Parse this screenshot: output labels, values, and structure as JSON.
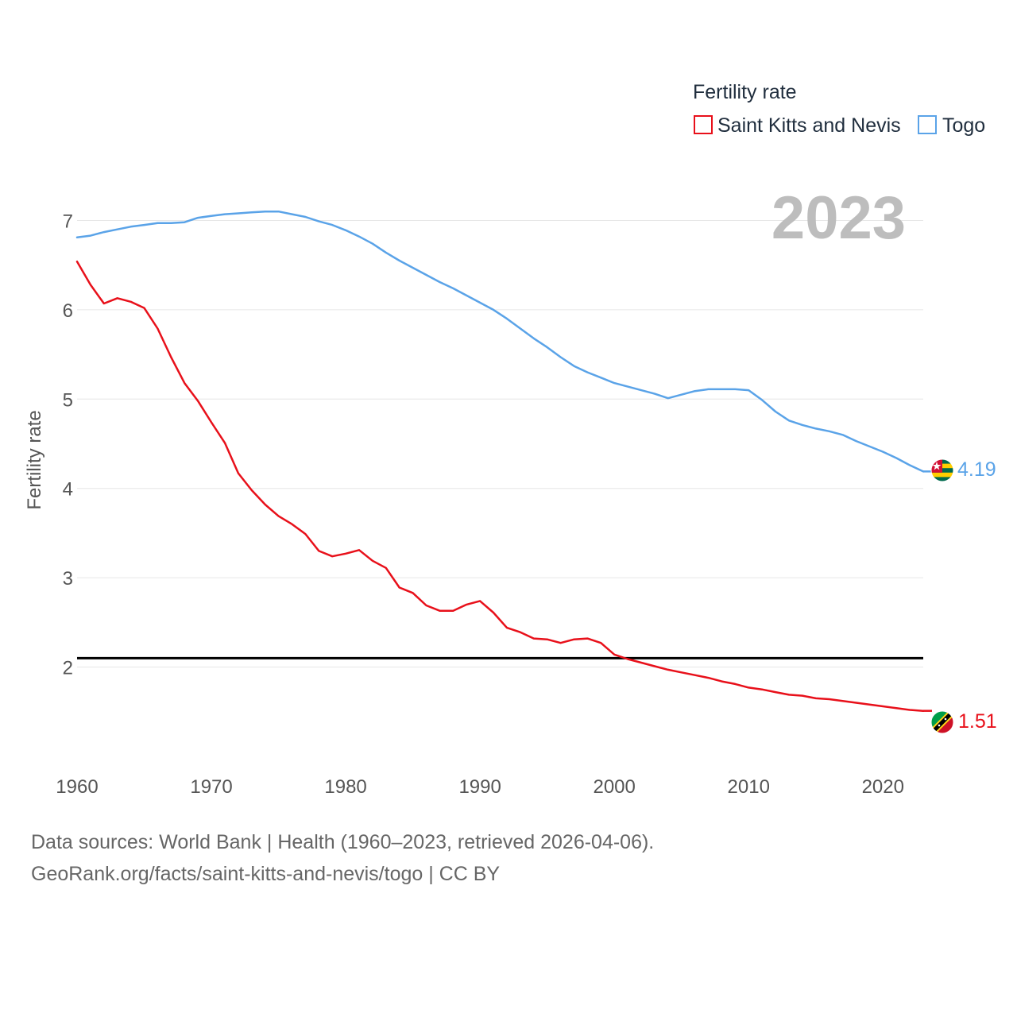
{
  "chart_data": {
    "type": "line",
    "title": "",
    "year_label": "2023",
    "legend_title": "Fertility rate",
    "ylabel": "Fertility rate",
    "xlabel": "",
    "xlim": [
      1960,
      2023
    ],
    "ylim": [
      1.0,
      7.6
    ],
    "x_ticks": [
      1960,
      1970,
      1980,
      1990,
      2000,
      2010,
      2020
    ],
    "y_ticks": [
      2,
      3,
      4,
      5,
      6,
      7
    ],
    "reference_line": {
      "value": 2.1,
      "color": "#000000"
    },
    "x": [
      1960,
      1961,
      1962,
      1963,
      1964,
      1965,
      1966,
      1967,
      1968,
      1969,
      1970,
      1971,
      1972,
      1973,
      1974,
      1975,
      1976,
      1977,
      1978,
      1979,
      1980,
      1981,
      1982,
      1983,
      1984,
      1985,
      1986,
      1987,
      1988,
      1989,
      1990,
      1991,
      1992,
      1993,
      1994,
      1995,
      1996,
      1997,
      1998,
      1999,
      2000,
      2001,
      2002,
      2003,
      2004,
      2005,
      2006,
      2007,
      2008,
      2009,
      2010,
      2011,
      2012,
      2013,
      2014,
      2015,
      2016,
      2017,
      2018,
      2019,
      2020,
      2021,
      2022,
      2023
    ],
    "series": [
      {
        "name": "Saint Kitts and Nevis",
        "color": "#e8101a",
        "end_label": "1.51",
        "flag": "saint-kitts-and-nevis-flag-icon",
        "values": [
          6.54,
          6.28,
          6.07,
          6.13,
          6.09,
          6.02,
          5.79,
          5.47,
          5.18,
          4.98,
          4.74,
          4.51,
          4.17,
          3.98,
          3.82,
          3.69,
          3.6,
          3.49,
          3.3,
          3.24,
          3.27,
          3.31,
          3.19,
          3.11,
          2.89,
          2.83,
          2.69,
          2.63,
          2.63,
          2.7,
          2.74,
          2.61,
          2.44,
          2.39,
          2.32,
          2.31,
          2.27,
          2.31,
          2.32,
          2.27,
          2.14,
          2.09,
          2.05,
          2.01,
          1.97,
          1.94,
          1.91,
          1.88,
          1.84,
          1.81,
          1.77,
          1.75,
          1.72,
          1.69,
          1.68,
          1.65,
          1.64,
          1.62,
          1.6,
          1.58,
          1.56,
          1.54,
          1.52,
          1.51
        ]
      },
      {
        "name": "Togo",
        "color": "#5aa3e8",
        "end_label": "4.19",
        "flag": "togo-flag-icon",
        "values": [
          6.81,
          6.83,
          6.87,
          6.9,
          6.93,
          6.95,
          6.97,
          6.97,
          6.98,
          7.03,
          7.05,
          7.07,
          7.08,
          7.09,
          7.1,
          7.1,
          7.07,
          7.04,
          6.99,
          6.95,
          6.89,
          6.82,
          6.74,
          6.64,
          6.55,
          6.47,
          6.39,
          6.31,
          6.24,
          6.16,
          6.08,
          6.0,
          5.9,
          5.79,
          5.68,
          5.58,
          5.47,
          5.37,
          5.3,
          5.24,
          5.18,
          5.14,
          5.1,
          5.06,
          5.01,
          5.05,
          5.09,
          5.11,
          5.11,
          5.11,
          5.1,
          4.99,
          4.86,
          4.76,
          4.71,
          4.67,
          4.64,
          4.6,
          4.53,
          4.47,
          4.41,
          4.34,
          4.26,
          4.19
        ]
      }
    ]
  },
  "footer": {
    "line1": "Data sources: World Bank | Health (1960–2023, retrieved 2026-04-06).",
    "line2": "GeoRank.org/facts/saint-kitts-and-nevis/togo | CC BY"
  }
}
